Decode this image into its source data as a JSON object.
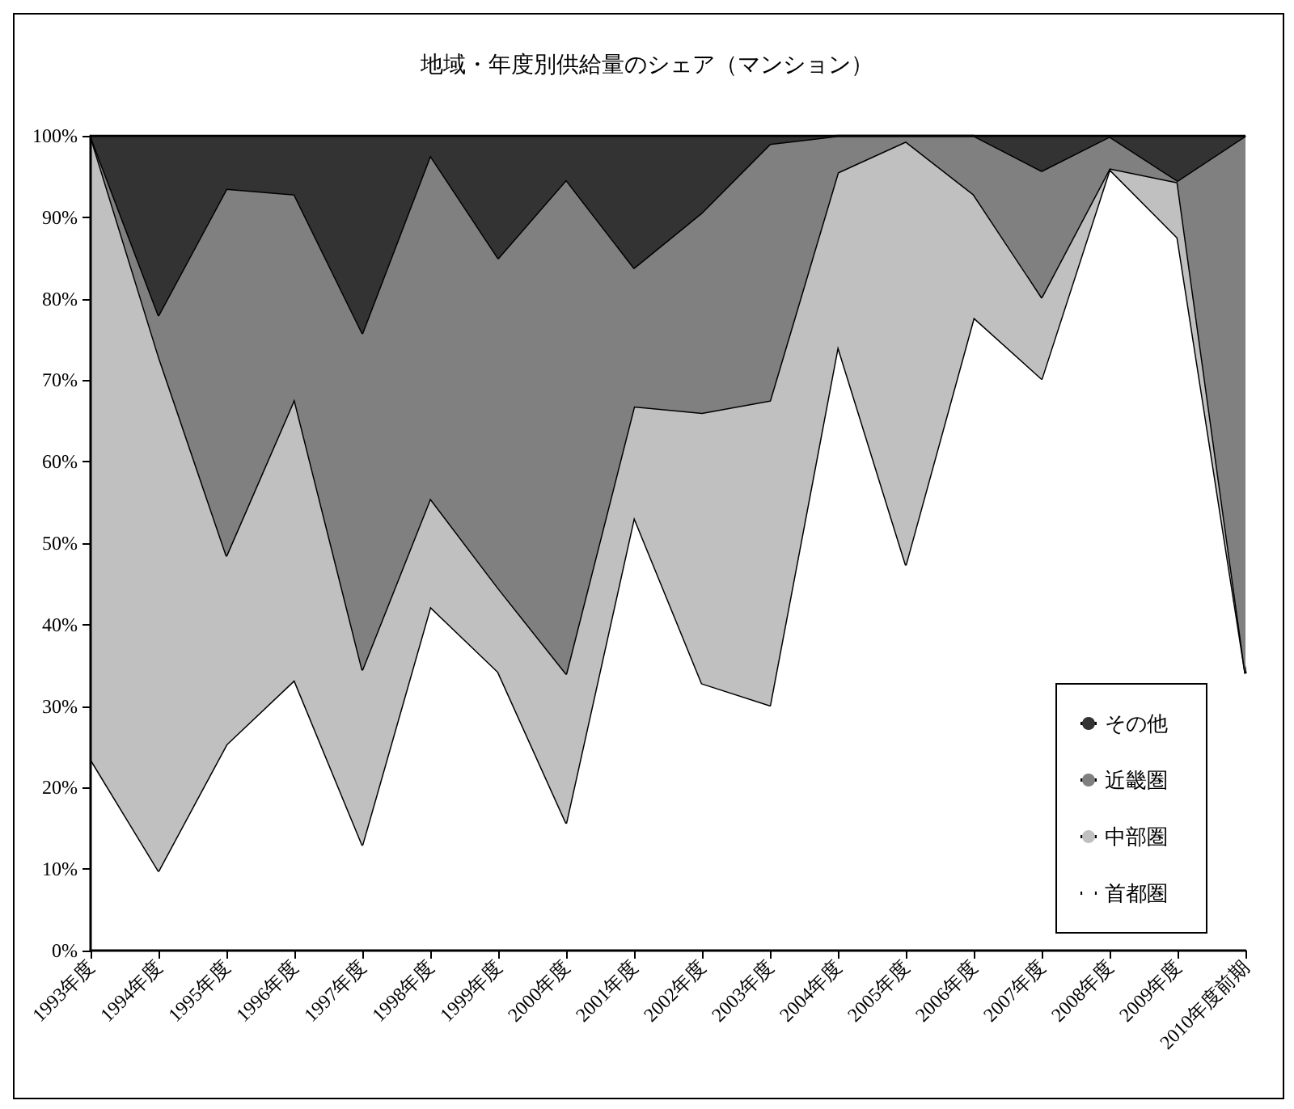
{
  "chart_data": {
    "type": "area",
    "title": "地域・年度別供給量のシェア（マンション）",
    "categories": [
      "1993年度",
      "1994年度",
      "1995年度",
      "1996年度",
      "1997年度",
      "1998年度",
      "1999年度",
      "2000年度",
      "2001年度",
      "2002年度",
      "2003年度",
      "2004年度",
      "2005年度",
      "2006年度",
      "2007年度",
      "2008年度",
      "2009年度",
      "2010年度前期"
    ],
    "stacked": true,
    "series": [
      {
        "name": "首都圏",
        "color": "#ffffff",
        "values": [
          23.5,
          9.8,
          25.3,
          33.2,
          13,
          42.2,
          34.2,
          15.7,
          53.2,
          32.8,
          30.1,
          74.2,
          47.4,
          77.7,
          70.2,
          95.9,
          87.5,
          34
        ]
      },
      {
        "name": "中部圏",
        "color": "#c0c0c0",
        "values": [
          76.5,
          63.2,
          23.2,
          34.5,
          21.5,
          13.3,
          10.3,
          18.3,
          13.6,
          33.2,
          37.4,
          21.3,
          51.9,
          15.1,
          10,
          0.1,
          6.8,
          0
        ]
      },
      {
        "name": "近畿圏",
        "color": "#808080",
        "values": [
          0,
          5,
          45,
          25.1,
          41.3,
          42.1,
          40.5,
          60.6,
          17,
          24.6,
          31.5,
          4.5,
          0.7,
          7.2,
          15.5,
          3.9,
          0.2,
          66
        ]
      },
      {
        "name": "その他",
        "color": "#333333",
        "values": [
          0,
          22,
          6.5,
          7.2,
          24.2,
          2.4,
          15,
          5.4,
          16.2,
          9.4,
          1,
          0,
          0,
          0,
          4.3,
          0.1,
          5.5,
          0
        ]
      }
    ],
    "ylim": [
      0,
      100
    ],
    "yticks": [
      {
        "value": 0,
        "label": "0%"
      },
      {
        "value": 10,
        "label": "10%"
      },
      {
        "value": 20,
        "label": "20%"
      },
      {
        "value": 30,
        "label": "30%"
      },
      {
        "value": 40,
        "label": "40%"
      },
      {
        "value": 50,
        "label": "50%"
      },
      {
        "value": 60,
        "label": "60%"
      },
      {
        "value": 70,
        "label": "70%"
      },
      {
        "value": 80,
        "label": "80%"
      },
      {
        "value": 90,
        "label": "90%"
      },
      {
        "value": 100,
        "label": "100%"
      }
    ],
    "grid": false,
    "legend": "bottom right"
  }
}
